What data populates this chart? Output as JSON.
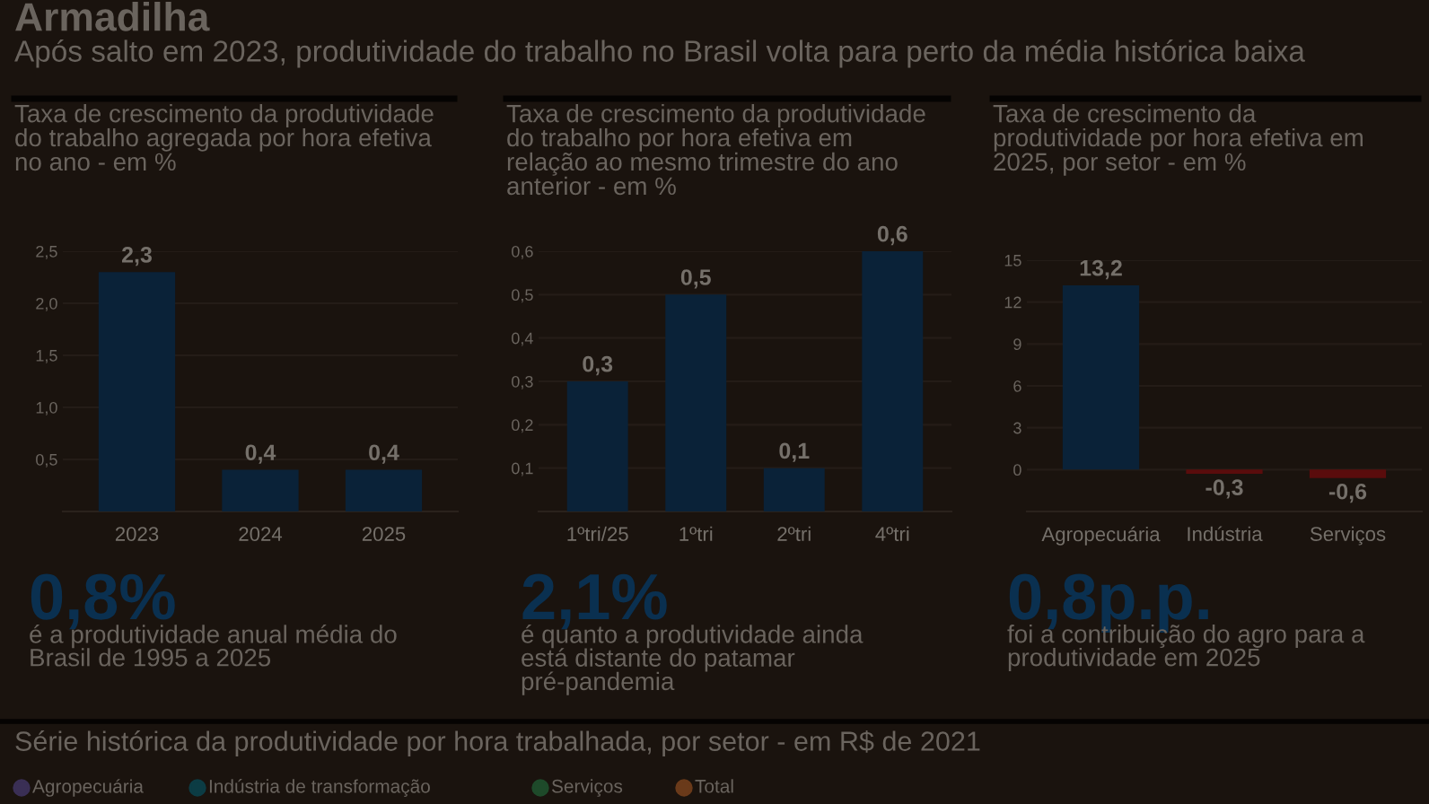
{
  "chart_data": [
    {
      "type": "other",
      "title": "Armadilha",
      "subtitle": "Após salto em 2023, produtividade do trabalho no Brasil volta para perto da média histórica baixa"
    },
    {
      "type": "bar",
      "title": "Taxa de crescimento da produtividade do trabalho agregada por hora efetiva no ano - em %",
      "categories": [
        "2023",
        "2024",
        "2025"
      ],
      "values": [
        2.3,
        0.4,
        0.4
      ],
      "value_labels": [
        "2,3",
        "0,4",
        "0,4"
      ],
      "color": "#0a2238",
      "ylim": [
        0,
        2.5
      ],
      "yticks": [
        {
          "value": 0.5,
          "label": "0,5"
        },
        {
          "value": 1.0,
          "label": "1,0"
        },
        {
          "value": 1.5,
          "label": "1,5"
        },
        {
          "value": 2.0,
          "label": "2,0"
        },
        {
          "value": 2.5,
          "label": "2,5"
        }
      ],
      "grid": "y",
      "annotations": [
        "0,8%",
        "é a produtividade anual média do Brasil de 1995 a 2025"
      ]
    },
    {
      "type": "bar",
      "title": "Taxa de crescimento da produtividade do trabalho por hora efetiva em relação ao mesmo trimestre do ano anterior - em %",
      "categories": [
        "1ºtri/25",
        "1ºtri",
        "2ºtri",
        "4ºtri"
      ],
      "values": [
        0.3,
        0.5,
        0.1,
        0.6
      ],
      "value_labels": [
        "0,3",
        "0,5",
        "0,1",
        "0,6"
      ],
      "color": "#0a2238",
      "ylim": [
        0,
        0.6
      ],
      "yticks": [
        {
          "value": 0.1,
          "label": "0,1"
        },
        {
          "value": 0.2,
          "label": "0,2"
        },
        {
          "value": 0.3,
          "label": "0,3"
        },
        {
          "value": 0.4,
          "label": "0,4"
        },
        {
          "value": 0.5,
          "label": "0,5"
        },
        {
          "value": 0.6,
          "label": "0,6"
        }
      ],
      "grid": "y",
      "annotations": [
        "2,1%",
        "é quanto a produtividade ainda está distante do patamar pré-pandemia"
      ]
    },
    {
      "type": "bar",
      "title": "Taxa de crescimento da produtividade por hora efetiva em 2025, por setor - em %",
      "categories": [
        "Agropecuária",
        "Indústria",
        "Serviços"
      ],
      "values": [
        13.2,
        -0.3,
        -0.6
      ],
      "value_labels": [
        "13,2",
        "-0,3",
        "-0,6"
      ],
      "colors": [
        "#0a2238",
        "#5a0c0c",
        "#5a0c0c"
      ],
      "ylim": [
        -3,
        15
      ],
      "yticks": [
        0,
        3,
        6,
        9,
        12,
        15
      ],
      "grid": "y",
      "annotations": [
        "0,8p.p.",
        "foi a contribuição do agro para a produtividade em 2025"
      ]
    },
    {
      "type": "other",
      "title": "Série histórica da produtividade por hora trabalhada, por setor - em R$ de 2021",
      "annotations": [
        "Agropecuária",
        "Indústria de transformação",
        "Serviços",
        "Total"
      ]
    }
  ]
}
